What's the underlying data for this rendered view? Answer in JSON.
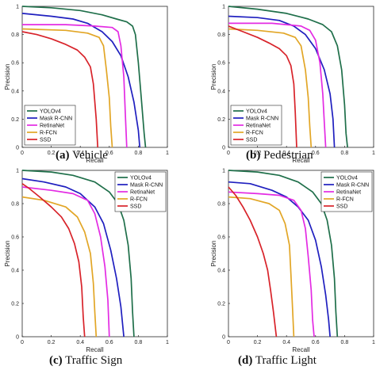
{
  "colors": {
    "YOLOv4": "#1f6f4a",
    "Mask R-CNN": "#1f1fbf",
    "RetinaNet": "#e32be3",
    "R-FCN": "#e2a626",
    "SSD": "#d8232a"
  },
  "chart_data": [
    {
      "type": "line",
      "caption_letter": "(a)",
      "caption_text": " Vehicle",
      "xlabel": "Recall",
      "ylabel": "Precision",
      "xlim": [
        0,
        1
      ],
      "ylim": [
        0,
        1
      ],
      "xticks": [
        "0",
        "0.2",
        "0.4",
        "0.6",
        "0.8",
        "1"
      ],
      "yticks": [
        "0",
        "0.2",
        "0.4",
        "0.6",
        "0.8",
        "1"
      ],
      "legend_position": "bottom-left",
      "series": [
        {
          "name": "YOLOv4",
          "points": [
            [
              0,
              1.0
            ],
            [
              0.2,
              0.99
            ],
            [
              0.4,
              0.97
            ],
            [
              0.55,
              0.94
            ],
            [
              0.65,
              0.91
            ],
            [
              0.72,
              0.89
            ],
            [
              0.76,
              0.86
            ],
            [
              0.78,
              0.8
            ],
            [
              0.8,
              0.6
            ],
            [
              0.82,
              0.35
            ],
            [
              0.84,
              0.1
            ],
            [
              0.85,
              0
            ]
          ]
        },
        {
          "name": "Mask R-CNN",
          "points": [
            [
              0,
              0.95
            ],
            [
              0.2,
              0.93
            ],
            [
              0.35,
              0.91
            ],
            [
              0.45,
              0.88
            ],
            [
              0.55,
              0.82
            ],
            [
              0.62,
              0.75
            ],
            [
              0.68,
              0.65
            ],
            [
              0.73,
              0.5
            ],
            [
              0.77,
              0.32
            ],
            [
              0.8,
              0.12
            ],
            [
              0.81,
              0
            ]
          ]
        },
        {
          "name": "RetinaNet",
          "points": [
            [
              0,
              0.87
            ],
            [
              0.3,
              0.87
            ],
            [
              0.5,
              0.86
            ],
            [
              0.62,
              0.85
            ],
            [
              0.66,
              0.82
            ],
            [
              0.68,
              0.72
            ],
            [
              0.7,
              0.5
            ],
            [
              0.71,
              0.25
            ],
            [
              0.72,
              0
            ]
          ]
        },
        {
          "name": "R-FCN",
          "points": [
            [
              0,
              0.84
            ],
            [
              0.3,
              0.83
            ],
            [
              0.45,
              0.81
            ],
            [
              0.53,
              0.78
            ],
            [
              0.56,
              0.72
            ],
            [
              0.58,
              0.55
            ],
            [
              0.6,
              0.35
            ],
            [
              0.61,
              0.15
            ],
            [
              0.62,
              0
            ]
          ]
        },
        {
          "name": "SSD",
          "points": [
            [
              0,
              0.82
            ],
            [
              0.1,
              0.8
            ],
            [
              0.2,
              0.77
            ],
            [
              0.3,
              0.73
            ],
            [
              0.38,
              0.69
            ],
            [
              0.43,
              0.64
            ],
            [
              0.47,
              0.57
            ],
            [
              0.49,
              0.45
            ],
            [
              0.51,
              0.2
            ],
            [
              0.52,
              0
            ]
          ]
        }
      ]
    },
    {
      "type": "line",
      "caption_letter": "(b)",
      "caption_text": " Pedestrian",
      "xlabel": "Recall",
      "ylabel": "Precision",
      "xlim": [
        0,
        1
      ],
      "ylim": [
        0,
        1
      ],
      "xticks": [
        "0",
        "0.2",
        "0.4",
        "0.6",
        "0.8",
        "1"
      ],
      "yticks": [
        "0",
        "0.2",
        "0.4",
        "0.6",
        "0.8",
        "1"
      ],
      "legend_position": "bottom-left",
      "series": [
        {
          "name": "YOLOv4",
          "points": [
            [
              0,
              1.0
            ],
            [
              0.2,
              0.98
            ],
            [
              0.4,
              0.95
            ],
            [
              0.55,
              0.91
            ],
            [
              0.65,
              0.87
            ],
            [
              0.71,
              0.82
            ],
            [
              0.75,
              0.72
            ],
            [
              0.78,
              0.55
            ],
            [
              0.8,
              0.3
            ],
            [
              0.81,
              0.1
            ],
            [
              0.82,
              0
            ]
          ]
        },
        {
          "name": "Mask R-CNN",
          "points": [
            [
              0,
              0.93
            ],
            [
              0.2,
              0.92
            ],
            [
              0.35,
              0.9
            ],
            [
              0.45,
              0.86
            ],
            [
              0.53,
              0.8
            ],
            [
              0.6,
              0.7
            ],
            [
              0.66,
              0.55
            ],
            [
              0.7,
              0.38
            ],
            [
              0.72,
              0.2
            ],
            [
              0.73,
              0
            ]
          ]
        },
        {
          "name": "RetinaNet",
          "points": [
            [
              0,
              0.88
            ],
            [
              0.3,
              0.88
            ],
            [
              0.5,
              0.86
            ],
            [
              0.56,
              0.83
            ],
            [
              0.6,
              0.76
            ],
            [
              0.63,
              0.6
            ],
            [
              0.65,
              0.38
            ],
            [
              0.66,
              0.18
            ],
            [
              0.67,
              0
            ]
          ]
        },
        {
          "name": "R-FCN",
          "points": [
            [
              0,
              0.84
            ],
            [
              0.2,
              0.83
            ],
            [
              0.38,
              0.81
            ],
            [
              0.46,
              0.78
            ],
            [
              0.5,
              0.72
            ],
            [
              0.53,
              0.55
            ],
            [
              0.55,
              0.35
            ],
            [
              0.56,
              0.15
            ],
            [
              0.57,
              0
            ]
          ]
        },
        {
          "name": "SSD",
          "points": [
            [
              0,
              0.86
            ],
            [
              0.1,
              0.82
            ],
            [
              0.2,
              0.78
            ],
            [
              0.28,
              0.74
            ],
            [
              0.35,
              0.7
            ],
            [
              0.4,
              0.65
            ],
            [
              0.43,
              0.58
            ],
            [
              0.45,
              0.45
            ],
            [
              0.46,
              0.25
            ],
            [
              0.47,
              0
            ]
          ]
        }
      ]
    },
    {
      "type": "line",
      "caption_letter": "(c)",
      "caption_text": " Traffic Sign",
      "xlabel": "Recall",
      "ylabel": "Precision",
      "xlim": [
        0,
        1
      ],
      "ylim": [
        0,
        1
      ],
      "xticks": [
        "0",
        "0.2",
        "0.4",
        "0.6",
        "0.8",
        "1"
      ],
      "yticks": [
        "0",
        "0.2",
        "0.4",
        "0.6",
        "0.8",
        "1"
      ],
      "legend_position": "top-right",
      "series": [
        {
          "name": "YOLOv4",
          "points": [
            [
              0,
              1.0
            ],
            [
              0.2,
              0.99
            ],
            [
              0.35,
              0.97
            ],
            [
              0.5,
              0.93
            ],
            [
              0.6,
              0.87
            ],
            [
              0.66,
              0.8
            ],
            [
              0.7,
              0.7
            ],
            [
              0.73,
              0.55
            ],
            [
              0.75,
              0.35
            ],
            [
              0.76,
              0.15
            ],
            [
              0.77,
              0
            ]
          ]
        },
        {
          "name": "Mask R-CNN",
          "points": [
            [
              0,
              0.95
            ],
            [
              0.15,
              0.93
            ],
            [
              0.3,
              0.9
            ],
            [
              0.4,
              0.86
            ],
            [
              0.5,
              0.78
            ],
            [
              0.56,
              0.68
            ],
            [
              0.61,
              0.52
            ],
            [
              0.65,
              0.35
            ],
            [
              0.68,
              0.18
            ],
            [
              0.7,
              0
            ]
          ]
        },
        {
          "name": "RetinaNet",
          "points": [
            [
              0,
              0.9
            ],
            [
              0.2,
              0.88
            ],
            [
              0.35,
              0.86
            ],
            [
              0.45,
              0.82
            ],
            [
              0.5,
              0.74
            ],
            [
              0.54,
              0.6
            ],
            [
              0.57,
              0.42
            ],
            [
              0.59,
              0.22
            ],
            [
              0.6,
              0
            ]
          ]
        },
        {
          "name": "R-FCN",
          "points": [
            [
              0,
              0.84
            ],
            [
              0.15,
              0.82
            ],
            [
              0.3,
              0.78
            ],
            [
              0.38,
              0.72
            ],
            [
              0.43,
              0.63
            ],
            [
              0.47,
              0.5
            ],
            [
              0.49,
              0.32
            ],
            [
              0.5,
              0.15
            ],
            [
              0.51,
              0
            ]
          ]
        },
        {
          "name": "SSD",
          "points": [
            [
              0,
              0.92
            ],
            [
              0.05,
              0.89
            ],
            [
              0.12,
              0.84
            ],
            [
              0.2,
              0.78
            ],
            [
              0.27,
              0.72
            ],
            [
              0.32,
              0.65
            ],
            [
              0.36,
              0.56
            ],
            [
              0.39,
              0.45
            ],
            [
              0.41,
              0.3
            ],
            [
              0.42,
              0.12
            ],
            [
              0.43,
              0
            ]
          ]
        }
      ]
    },
    {
      "type": "line",
      "caption_letter": "(d)",
      "caption_text": " Traffic Light",
      "xlabel": "Recall",
      "ylabel": "Precision",
      "xlim": [
        0,
        1
      ],
      "ylim": [
        0,
        1
      ],
      "xticks": [
        "0",
        "0.2",
        "0.4",
        "0.6",
        "0.8",
        "1"
      ],
      "yticks": [
        "0",
        "0.2",
        "0.4",
        "0.6",
        "0.8",
        "1"
      ],
      "legend_position": "top-right",
      "series": [
        {
          "name": "YOLOv4",
          "points": [
            [
              0,
              1.0
            ],
            [
              0.2,
              0.99
            ],
            [
              0.35,
              0.97
            ],
            [
              0.48,
              0.93
            ],
            [
              0.58,
              0.87
            ],
            [
              0.64,
              0.8
            ],
            [
              0.68,
              0.7
            ],
            [
              0.71,
              0.55
            ],
            [
              0.73,
              0.35
            ],
            [
              0.74,
              0.15
            ],
            [
              0.75,
              0
            ]
          ]
        },
        {
          "name": "Mask R-CNN",
          "points": [
            [
              0,
              0.93
            ],
            [
              0.15,
              0.92
            ],
            [
              0.3,
              0.88
            ],
            [
              0.4,
              0.84
            ],
            [
              0.48,
              0.78
            ],
            [
              0.55,
              0.7
            ],
            [
              0.6,
              0.58
            ],
            [
              0.64,
              0.42
            ],
            [
              0.67,
              0.25
            ],
            [
              0.69,
              0.1
            ],
            [
              0.7,
              0
            ]
          ]
        },
        {
          "name": "RetinaNet",
          "points": [
            [
              0,
              0.87
            ],
            [
              0.2,
              0.86
            ],
            [
              0.35,
              0.85
            ],
            [
              0.45,
              0.82
            ],
            [
              0.5,
              0.76
            ],
            [
              0.53,
              0.65
            ],
            [
              0.55,
              0.48
            ],
            [
              0.57,
              0.28
            ],
            [
              0.58,
              0.1
            ],
            [
              0.59,
              0
            ]
          ]
        },
        {
          "name": "R-FCN",
          "points": [
            [
              0,
              0.84
            ],
            [
              0.15,
              0.83
            ],
            [
              0.28,
              0.8
            ],
            [
              0.35,
              0.76
            ],
            [
              0.39,
              0.68
            ],
            [
              0.42,
              0.55
            ],
            [
              0.43,
              0.38
            ],
            [
              0.44,
              0.2
            ],
            [
              0.45,
              0
            ]
          ]
        },
        {
          "name": "SSD",
          "points": [
            [
              0,
              0.9
            ],
            [
              0.05,
              0.85
            ],
            [
              0.1,
              0.78
            ],
            [
              0.15,
              0.7
            ],
            [
              0.2,
              0.6
            ],
            [
              0.24,
              0.5
            ],
            [
              0.27,
              0.4
            ],
            [
              0.29,
              0.28
            ],
            [
              0.31,
              0.15
            ],
            [
              0.33,
              0
            ]
          ]
        }
      ]
    }
  ]
}
